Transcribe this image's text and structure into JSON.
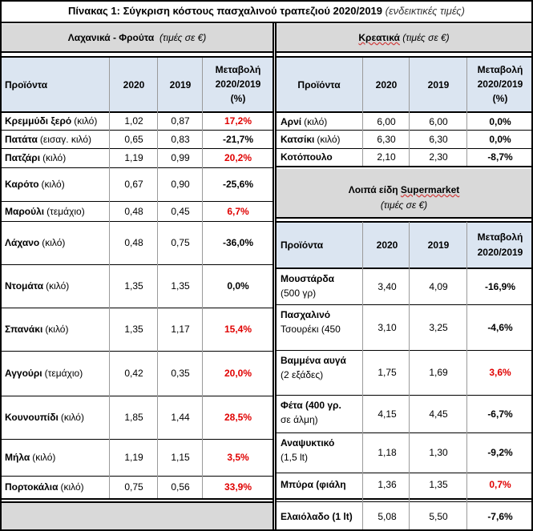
{
  "title": {
    "main": "Πίνακας 1: Σύγκριση κόστους πασχαλινού τραπεζιού 2020/2019",
    "note": "(ενδεικτικές τιμές)"
  },
  "veg": {
    "section_title": "Λαχανικά - Φρούτα",
    "section_note": "(τιμές σε €)",
    "headers": {
      "product": "Προϊόντα",
      "y2020": "2020",
      "y2019": "2019",
      "change_l1": "Μεταβολή",
      "change_l2": "2020/2019",
      "change_l3": "(%)"
    },
    "rows": [
      {
        "name": "Κρεμμύδι ξερό",
        "unit": "(κιλό)",
        "v2020": "1,02",
        "v2019": "0,87",
        "change": "17,2%",
        "color": "#e00000"
      },
      {
        "name": "Πατάτα",
        "unit": "(εισαγ. κιλό)",
        "v2020": "0,65",
        "v2019": "0,83",
        "change": "-21,7%",
        "color": "#000000"
      },
      {
        "name": "Πατζάρι",
        "unit": "(κιλό)",
        "v2020": "1,19",
        "v2019": "0,99",
        "change": "20,2%",
        "color": "#e00000"
      },
      {
        "name": "Καρότο",
        "unit": "(κιλό)",
        "v2020": "0,67",
        "v2019": "0,90",
        "change": "-25,6%",
        "color": "#000000"
      },
      {
        "name": "Μαρούλι",
        "unit": "(τεμάχιο)",
        "v2020": "0,48",
        "v2019": "0,45",
        "change": "6,7%",
        "color": "#e00000"
      },
      {
        "name": "Λάχανο",
        "unit": "(κιλό)",
        "v2020": "0,48",
        "v2019": "0,75",
        "change": "-36,0%",
        "color": "#000000"
      },
      {
        "name": "Ντομάτα",
        "unit": "(κιλό)",
        "v2020": "1,35",
        "v2019": "1,35",
        "change": "0,0%",
        "color": "#000000"
      },
      {
        "name": "Σπανάκι",
        "unit": "(κιλό)",
        "v2020": "1,35",
        "v2019": "1,17",
        "change": "15,4%",
        "color": "#e00000"
      },
      {
        "name": "Αγγούρι",
        "unit": "(τεμάχιο)",
        "v2020": "0,42",
        "v2019": "0,35",
        "change": "20,0%",
        "color": "#e00000"
      },
      {
        "name": "Κουνουπίδι",
        "unit": "(κιλό)",
        "v2020": "1,85",
        "v2019": "1,44",
        "change": "28,5%",
        "color": "#e00000"
      },
      {
        "name": "Μήλα",
        "unit": "(κιλό)",
        "v2020": "1,19",
        "v2019": "1,15",
        "change": "3,5%",
        "color": "#e00000"
      },
      {
        "name": "Πορτοκάλια",
        "unit": "(κιλό)",
        "v2020": "0,75",
        "v2019": "0,56",
        "change": "33,9%",
        "color": "#e00000"
      }
    ]
  },
  "meat": {
    "section_title": "Κρεατικά",
    "section_note": "(τιμές σε €)",
    "headers": {
      "product": "Προϊόντα",
      "y2020": "2020",
      "y2019": "2019",
      "change_l1": "Μεταβολή",
      "change_l2": "2020/2019",
      "change_l3": "(%)"
    },
    "rows": [
      {
        "name": "Αρνί",
        "unit": "(κιλό)",
        "v2020": "6,00",
        "v2019": "6,00",
        "change": "0,0%"
      },
      {
        "name": "Κατσίκι",
        "unit": "(κιλό)",
        "v2020": "6,30",
        "v2019": "6,30",
        "change": "0,0%"
      },
      {
        "name": "Κοτόπουλο",
        "unit": "",
        "v2020": "2,10",
        "v2019": "2,30",
        "change": "-8,7%"
      }
    ]
  },
  "super": {
    "section_title": "Λοιπά είδη Supermarket",
    "section_note": "(τιμές σε €)",
    "headers": {
      "product": "Προϊόντα",
      "y2020": "2020",
      "y2019": "2019",
      "change_l1": "Μεταβολή",
      "change_l2": "2020/2019"
    },
    "rows": [
      {
        "l1": "Μουστάρδα",
        "l2": "(500 γρ)",
        "v2020": "3,40",
        "v2019": "4,09",
        "change": "-16,9%",
        "color": "#000000"
      },
      {
        "l1": "Πασχαλινό",
        "l2": "Τσουρέκι (450",
        "v2020": "3,10",
        "v2019": "3,25",
        "change": "-4,6%",
        "color": "#000000"
      },
      {
        "l1": "Βαμμένα αυγά",
        "l2": "(2 εξάδες)",
        "v2020": "1,75",
        "v2019": "1,69",
        "change": "3,6%",
        "color": "#e00000"
      },
      {
        "l1": "Φέτα (400 γρ.",
        "l2": "σε άλμη)",
        "v2020": "4,15",
        "v2019": "4,45",
        "change": "-6,7%",
        "color": "#000000"
      },
      {
        "l1": "Αναψυκτικό",
        "l2": "(1,5 lt)",
        "v2020": "1,18",
        "v2019": "1,30",
        "change": "-9,2%",
        "color": "#000000"
      },
      {
        "l1": "Μπύρα (φιάλη",
        "l2": "",
        "v2020": "1,36",
        "v2019": "1,35",
        "change": "0,7%",
        "color": "#e00000"
      },
      {
        "l1": "Ελαιόλαδο (1 lt)",
        "l2": "",
        "v2020": "5,08",
        "v2019": "5,50",
        "change": "-7,6%",
        "color": "#000000"
      }
    ]
  }
}
